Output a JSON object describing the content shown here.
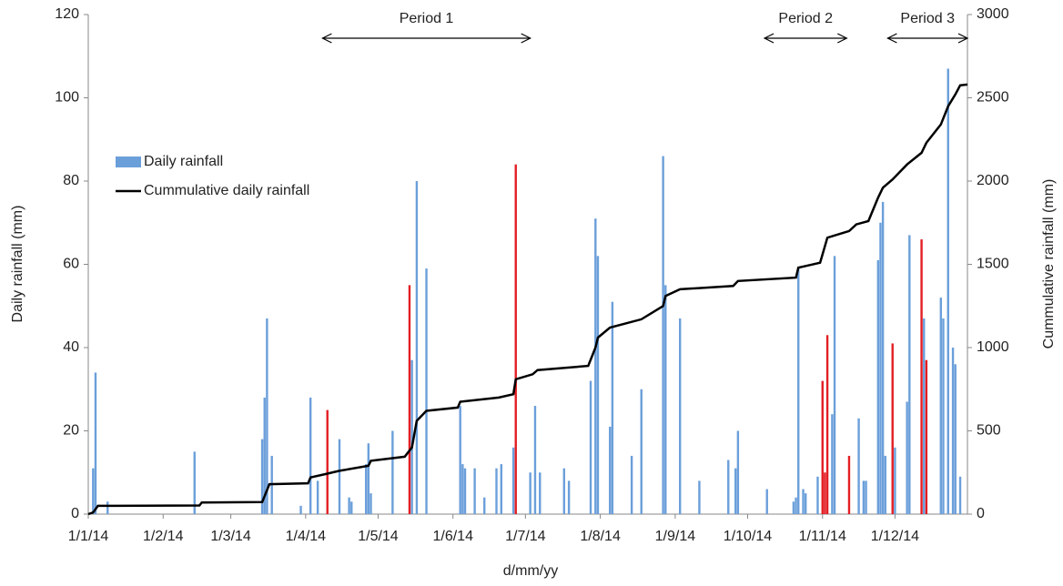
{
  "chart_data": {
    "type": "bar",
    "x_label": "d/mm/yy",
    "y_label": "Daily rainfall (mm)",
    "y2_label": "Cummulative rainfall (mm)",
    "xlim": [
      "1/1/14",
      "31/12/14"
    ],
    "xticks": [
      "1/1/14",
      "1/2/14",
      "1/3/14",
      "1/4/14",
      "1/5/14",
      "1/6/14",
      "1/7/14",
      "1/8/14",
      "1/9/14",
      "1/10/14",
      "1/11/14",
      "1/12/14"
    ],
    "ylim": [
      0,
      120
    ],
    "yticks": [
      0,
      20,
      40,
      60,
      80,
      100,
      120
    ],
    "y2lim": [
      0,
      3000
    ],
    "y2ticks": [
      0,
      500,
      1000,
      1500,
      2000,
      2500,
      3000
    ],
    "legend": "upper left",
    "series": [
      {
        "name": "Daily rainfall",
        "color": "#6b9fda",
        "x": [
          "3/1/14",
          "4/1/14",
          "9/1/14",
          "14/2/14",
          "14/3/14",
          "15/3/14",
          "16/3/14",
          "18/3/14",
          "30/3/14",
          "3/4/14",
          "6/4/14",
          "15/4/14",
          "19/4/14",
          "20/4/14",
          "26/4/14",
          "27/4/14",
          "28/4/14",
          "7/5/14",
          "15/5/14",
          "17/5/14",
          "21/5/14",
          "4/6/14",
          "5/6/14",
          "6/6/14",
          "10/6/14",
          "14/6/14",
          "19/6/14",
          "21/6/14",
          "26/6/14",
          "3/7/14",
          "5/7/14",
          "7/7/14",
          "17/7/14",
          "19/7/14",
          "28/7/14",
          "30/7/14",
          "31/7/14",
          "5/8/14",
          "6/8/14",
          "14/8/14",
          "18/8/14",
          "27/8/14",
          "28/8/14",
          "3/9/14",
          "11/9/14",
          "23/9/14",
          "26/9/14",
          "27/9/14",
          "9/10/14",
          "20/10/14",
          "21/10/14",
          "22/10/14",
          "24/10/14",
          "25/10/14",
          "30/10/14",
          "5/11/14",
          "6/11/14",
          "16/11/14",
          "18/11/14",
          "19/11/14",
          "24/11/14",
          "25/11/14",
          "26/11/14",
          "27/11/14",
          "1/12/14",
          "6/12/14",
          "7/12/14",
          "13/12/14",
          "20/12/14",
          "21/12/14",
          "23/12/14",
          "25/12/14",
          "26/12/14",
          "28/12/14"
        ],
        "values": [
          11,
          34,
          3,
          15,
          18,
          28,
          47,
          14,
          2,
          28,
          8,
          18,
          4,
          3,
          12,
          17,
          5,
          20,
          37,
          80,
          59,
          26,
          12,
          11,
          11,
          4,
          11,
          12,
          16,
          10,
          26,
          10,
          11,
          8,
          32,
          71,
          62,
          21,
          51,
          14,
          30,
          86,
          55,
          47,
          8,
          13,
          11,
          20,
          6,
          3,
          4,
          59,
          6,
          5,
          9,
          24,
          62,
          23,
          8,
          8,
          61,
          70,
          75,
          14,
          16,
          27,
          67,
          47,
          52,
          47,
          107,
          40,
          36,
          9
        ]
      },
      {
        "color": "#e31e24",
        "x": [
          "10/4/14",
          "14/5/14",
          "27/6/14",
          "1/11/14",
          "2/11/14",
          "3/11/14",
          "12/11/14",
          "30/11/14",
          "12/12/14",
          "14/12/14"
        ],
        "values": [
          25,
          55,
          84,
          32,
          10,
          43,
          14,
          41,
          66,
          37
        ]
      },
      {
        "name": "Cummulative daily rainfall",
        "color": "#000000",
        "type": "line",
        "axis": "y2",
        "x": [
          "1/1/14",
          "3/1/14",
          "5/1/14",
          "16/2/14",
          "17/2/14",
          "14/3/14",
          "17/3/14",
          "2/4/14",
          "3/4/14",
          "9/4/14",
          "15/4/14",
          "27/4/14",
          "28/4/14",
          "12/5/14",
          "15/5/14",
          "17/5/14",
          "21/5/14",
          "3/6/14",
          "4/6/14",
          "20/6/14",
          "26/6/14",
          "27/6/14",
          "4/7/14",
          "6/7/14",
          "27/7/14",
          "30/7/14",
          "31/7/14",
          "5/8/14",
          "18/8/14",
          "27/8/14",
          "28/8/14",
          "3/9/14",
          "25/9/14",
          "27/9/14",
          "21/10/14",
          "22/10/14",
          "31/10/14",
          "1/11/14",
          "3/11/14",
          "12/11/14",
          "15/11/14",
          "20/11/14",
          "24/11/14",
          "26/11/14",
          "30/11/14",
          "6/12/14",
          "12/12/14",
          "14/12/14",
          "20/12/14",
          "23/12/14",
          "26/12/14",
          "28/12/14",
          "31/12/14"
        ],
        "values": [
          0,
          10,
          50,
          52,
          70,
          72,
          180,
          185,
          220,
          240,
          260,
          290,
          320,
          345,
          400,
          560,
          620,
          640,
          675,
          700,
          720,
          810,
          840,
          865,
          890,
          1000,
          1060,
          1120,
          1170,
          1250,
          1310,
          1350,
          1370,
          1400,
          1420,
          1480,
          1510,
          1560,
          1660,
          1700,
          1740,
          1760,
          1900,
          1960,
          2010,
          2100,
          2170,
          2230,
          2340,
          2450,
          2520,
          2575,
          2580
        ]
      }
    ],
    "annotations": [
      {
        "text": "Period 1",
        "start": "8/4/14",
        "end": "3/7/14"
      },
      {
        "text": "Period 2",
        "start": "8/10/14",
        "end": "11/11/14"
      },
      {
        "text": "Period 3",
        "start": "28/11/14",
        "end": "31/12/14"
      }
    ]
  }
}
